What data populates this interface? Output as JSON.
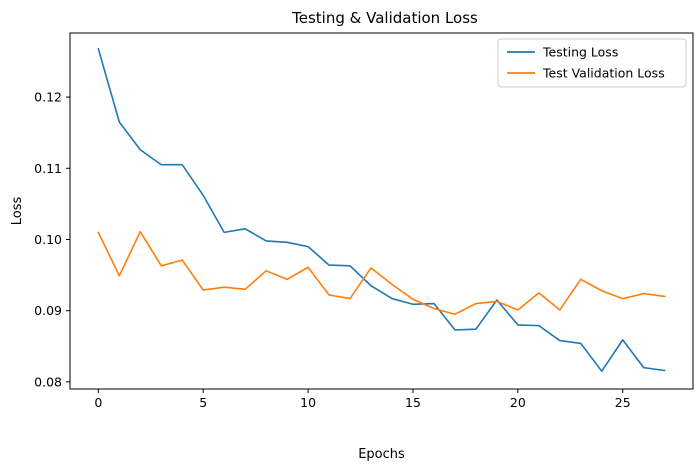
{
  "chart_data": {
    "type": "line",
    "title": "Testing & Validation Loss",
    "xlabel": "Epochs",
    "ylabel": "Loss",
    "xlim": [
      -1.35,
      28.35
    ],
    "ylim": [
      0.079,
      0.129
    ],
    "x_ticks": [
      0,
      5,
      10,
      15,
      20,
      25
    ],
    "y_ticks": [
      0.08,
      0.09,
      0.1,
      0.11,
      0.12
    ],
    "y_tick_labels": [
      "0.08",
      "0.09",
      "0.10",
      "0.11",
      "0.12"
    ],
    "grid": false,
    "legend_position": "top-right",
    "x": [
      0,
      1,
      2,
      3,
      4,
      5,
      6,
      7,
      8,
      9,
      10,
      11,
      12,
      13,
      14,
      15,
      16,
      17,
      18,
      19,
      20,
      21,
      22,
      23,
      24,
      25,
      26,
      27
    ],
    "series": [
      {
        "name": "Testing Loss",
        "color": "#1f77b4",
        "values": [
          0.1268,
          0.1165,
          0.1126,
          0.1105,
          0.1105,
          0.1062,
          0.101,
          0.1015,
          0.0998,
          0.0996,
          0.099,
          0.0964,
          0.0963,
          0.0935,
          0.0917,
          0.0909,
          0.091,
          0.0873,
          0.0874,
          0.0915,
          0.088,
          0.0879,
          0.0858,
          0.0854,
          0.0815,
          0.0859,
          0.082,
          0.0816
        ]
      },
      {
        "name": "Test Validation Loss",
        "color": "#ff7f0e",
        "values": [
          0.101,
          0.0949,
          0.1011,
          0.0963,
          0.0971,
          0.0929,
          0.0933,
          0.093,
          0.0956,
          0.0944,
          0.0961,
          0.0922,
          0.0917,
          0.096,
          0.0937,
          0.0916,
          0.0903,
          0.0895,
          0.091,
          0.0913,
          0.0901,
          0.0925,
          0.0901,
          0.0944,
          0.0928,
          0.0917,
          0.0924,
          0.092
        ]
      }
    ]
  }
}
